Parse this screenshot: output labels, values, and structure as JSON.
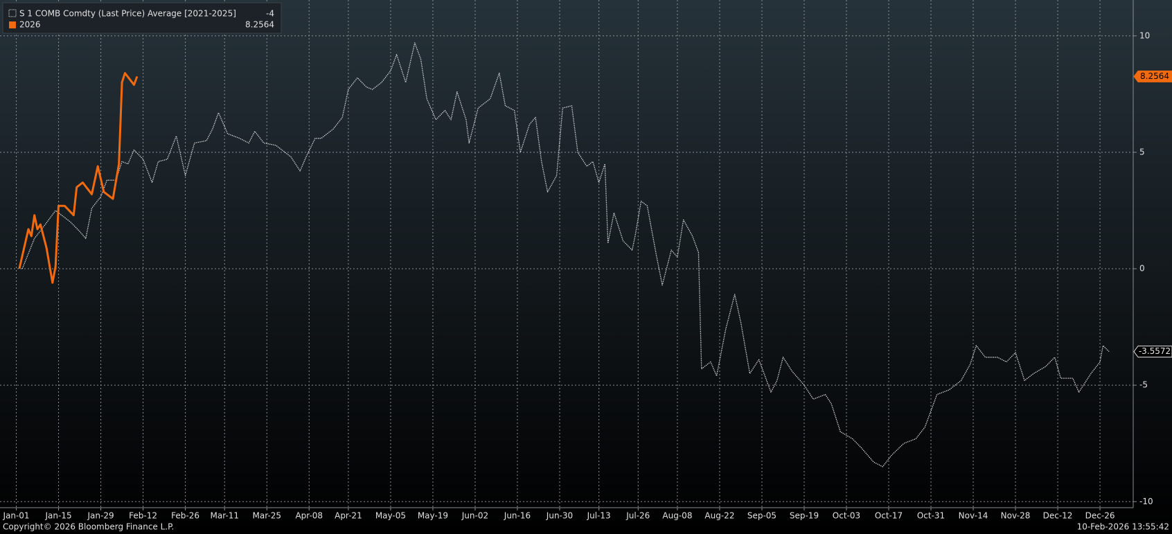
{
  "chart_data": {
    "type": "line",
    "series": [
      {
        "name": "S 1 COMB Comdty (Last Price) Average [2021-2025]",
        "color": "#e6e6e6",
        "linestyle": "dotted",
        "x": [
          2,
          6,
          9,
          13,
          16,
          18,
          21,
          23,
          25,
          28,
          30,
          33,
          35,
          37,
          39,
          42,
          45,
          47,
          50,
          53,
          56,
          59,
          63,
          65,
          67,
          70,
          74,
          77,
          79,
          82,
          86,
          89,
          91,
          94,
          96,
          99,
          101,
          105,
          108,
          110,
          113,
          116,
          118,
          121,
          124,
          126,
          129,
          132,
          134,
          136,
          139,
          142,
          144,
          146,
          149,
          150,
          153,
          157,
          160,
          162,
          165,
          167,
          170,
          172,
          174,
          176,
          179,
          181,
          184,
          186,
          189,
          191,
          193,
          195,
          196,
          198,
          201,
          204,
          205,
          207,
          209,
          212,
          214,
          217,
          219,
          221,
          224,
          226,
          227,
          230,
          232,
          235,
          238,
          240,
          243,
          246,
          250,
          252,
          254,
          257,
          261,
          264,
          268,
          270,
          273,
          277,
          280,
          284,
          287,
          290,
          294,
          298,
          301,
          305,
          309,
          313,
          316,
          318,
          321,
          325,
          328,
          331,
          334,
          337,
          341,
          344,
          346,
          350,
          352,
          356,
          359,
          360,
          362
        ],
        "values": [
          0,
          1.3,
          1.8,
          2.5,
          2.2,
          2.0,
          1.6,
          1.3,
          2.6,
          3.1,
          3.8,
          3.8,
          4.6,
          4.5,
          5.1,
          4.7,
          3.7,
          4.6,
          4.7,
          5.7,
          4.0,
          5.4,
          5.5,
          6.0,
          6.7,
          5.8,
          5.6,
          5.4,
          5.9,
          5.4,
          5.3,
          5.0,
          4.8,
          4.2,
          4.8,
          5.6,
          5.6,
          6.0,
          6.5,
          7.7,
          8.2,
          7.8,
          7.7,
          8.0,
          8.5,
          9.2,
          8.0,
          9.7,
          9.0,
          7.3,
          6.4,
          6.8,
          6.4,
          7.6,
          6.4,
          5.4,
          6.9,
          7.3,
          8.4,
          7.0,
          6.8,
          5.0,
          6.2,
          6.5,
          4.6,
          3.3,
          4.0,
          6.9,
          7.0,
          5.0,
          4.4,
          4.6,
          3.7,
          4.5,
          1.1,
          2.4,
          1.2,
          0.8,
          1.4,
          2.9,
          2.7,
          0.6,
          -0.7,
          0.8,
          0.5,
          2.1,
          1.4,
          0.7,
          -4.3,
          -4.0,
          -4.6,
          -2.6,
          -1.1,
          -2.3,
          -4.5,
          -3.9,
          -5.3,
          -4.8,
          -3.8,
          -4.4,
          -5.0,
          -5.6,
          -5.4,
          -5.8,
          -7.0,
          -7.3,
          -7.7,
          -8.3,
          -8.5,
          -8.0,
          -7.5,
          -7.3,
          -6.8,
          -5.4,
          -5.2,
          -4.8,
          -4.1,
          -3.3,
          -3.8,
          -3.8,
          -4.0,
          -3.6,
          -4.8,
          -4.5,
          -4.2,
          -3.8,
          -4.7,
          -4.7,
          -5.3,
          -4.5,
          -4.0,
          -3.3,
          -3.5572
        ]
      },
      {
        "name": "2026",
        "color": "#f26a0f",
        "linestyle": "solid",
        "x": [
          1,
          4,
          5,
          6,
          7,
          8,
          10,
          12,
          13,
          14,
          16,
          19,
          20,
          22,
          25,
          27,
          29,
          32,
          34,
          35,
          36,
          39,
          40
        ],
        "values": [
          0,
          1.7,
          1.4,
          2.3,
          1.7,
          1.9,
          0.9,
          -0.6,
          0.1,
          2.7,
          2.7,
          2.3,
          3.5,
          3.7,
          3.2,
          4.4,
          3.3,
          3.0,
          4.5,
          8.0,
          8.4,
          7.9,
          8.2564
        ]
      }
    ],
    "xlim": [
      -5.4,
      370
    ],
    "xticks": [
      {
        "value": 0,
        "label": "Jan-01"
      },
      {
        "value": 14,
        "label": "Jan-15"
      },
      {
        "value": 28,
        "label": "Jan-29"
      },
      {
        "value": 42,
        "label": "Feb-12"
      },
      {
        "value": 56,
        "label": "Feb-26"
      },
      {
        "value": 69,
        "label": "Mar-11"
      },
      {
        "value": 83,
        "label": "Mar-25"
      },
      {
        "value": 97,
        "label": "Apr-08"
      },
      {
        "value": 110,
        "label": "Apr-21"
      },
      {
        "value": 124,
        "label": "May-05"
      },
      {
        "value": 138,
        "label": "May-19"
      },
      {
        "value": 152,
        "label": "Jun-02"
      },
      {
        "value": 166,
        "label": "Jun-16"
      },
      {
        "value": 180,
        "label": "Jun-30"
      },
      {
        "value": 193,
        "label": "Jul-13"
      },
      {
        "value": 206,
        "label": "Jul-26"
      },
      {
        "value": 219,
        "label": "Aug-08"
      },
      {
        "value": 233,
        "label": "Aug-22"
      },
      {
        "value": 247,
        "label": "Sep-05"
      },
      {
        "value": 261,
        "label": "Sep-19"
      },
      {
        "value": 275,
        "label": "Oct-03"
      },
      {
        "value": 289,
        "label": "Oct-17"
      },
      {
        "value": 303,
        "label": "Oct-31"
      },
      {
        "value": 317,
        "label": "Nov-14"
      },
      {
        "value": 331,
        "label": "Nov-28"
      },
      {
        "value": 345,
        "label": "Dec-12"
      },
      {
        "value": 359,
        "label": "Dec-26"
      }
    ],
    "ylim": [
      -10.26,
      11.54
    ],
    "yticks": [
      -10,
      -5,
      0,
      5,
      10
    ],
    "grid": true,
    "copyright": "Copyright© 2026 Bloomberg Finance L.P.",
    "timestamp": "10-Feb-2026 13:55:42"
  }
}
